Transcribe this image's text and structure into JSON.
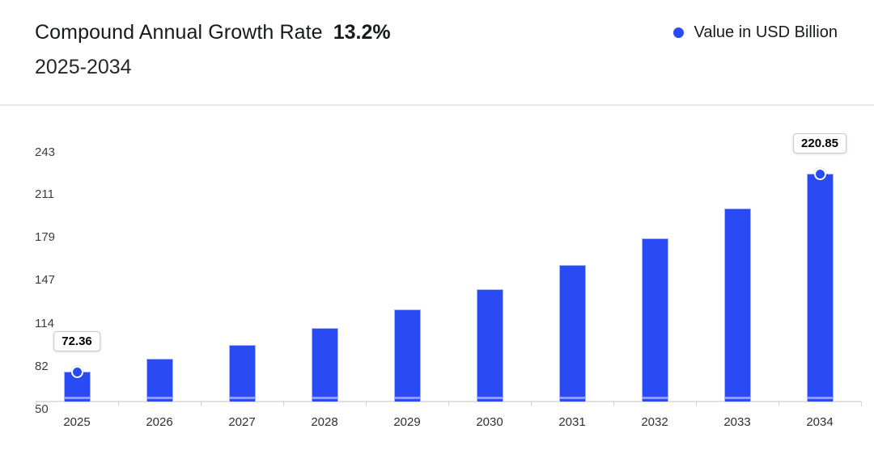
{
  "header": {
    "title": "Compound Annual Growth Rate",
    "cagr_value": "13.2%",
    "period": "2025-2034"
  },
  "legend": {
    "label": "Value in USD Billion"
  },
  "colors": {
    "bar": "#2a4bf3",
    "bar_stripe": "#8d9ff7",
    "accent": "#2a4bf3"
  },
  "chart_data": {
    "type": "bar",
    "title": "Compound Annual Growth Rate 13.2%",
    "subtitle": "2025-2034",
    "series_name": "Value in USD Billion",
    "categories": [
      "2025",
      "2026",
      "2027",
      "2028",
      "2029",
      "2030",
      "2031",
      "2032",
      "2033",
      "2034"
    ],
    "values": [
      72.36,
      81.91,
      92.72,
      104.96,
      118.82,
      134.51,
      152.26,
      172.36,
      195.11,
      220.85
    ],
    "ylim": [
      50,
      243
    ],
    "yticks": [
      50,
      82,
      114,
      147,
      179,
      211,
      243
    ],
    "xlabel": "",
    "ylabel": "Value in USD Billion",
    "grid": false,
    "legend_position": "top-right",
    "bar_color": "#2a4bf3",
    "point_labels": [
      {
        "index": 0,
        "category": "2025",
        "text": "72.36"
      },
      {
        "index": 9,
        "category": "2034",
        "text": "220.85"
      }
    ]
  }
}
